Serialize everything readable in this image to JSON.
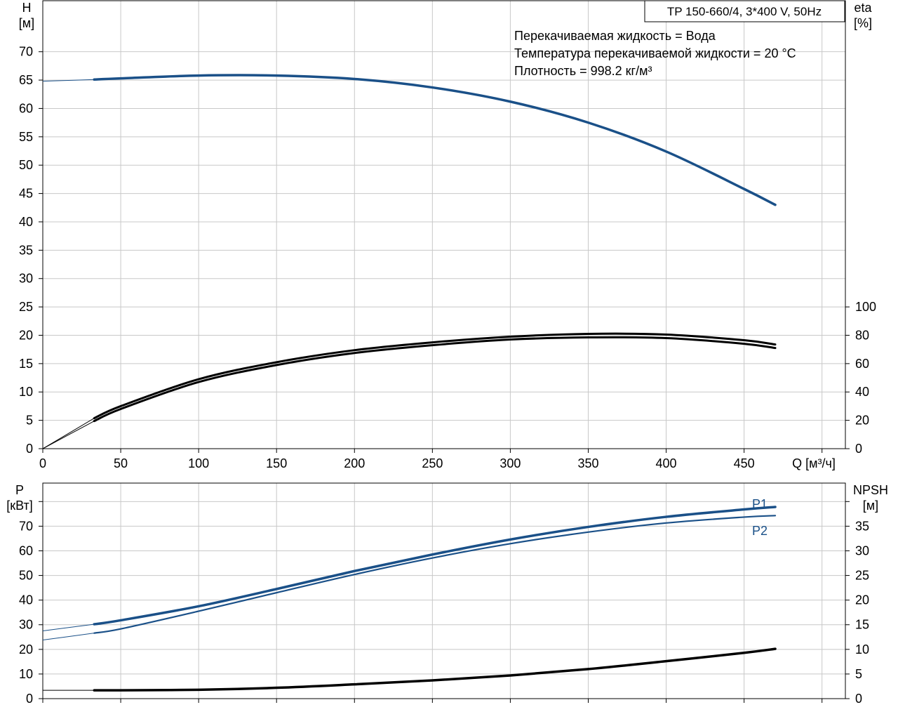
{
  "title": "TP 150-660/4, 3*400 V, 50Hz",
  "info_lines": [
    "Перекачиваемая жидкость = Вода",
    "Температура перекачиваемой жидкости = 20 °C",
    "Плотность = 998.2 кг/м³"
  ],
  "colors": {
    "blue": "#1a5088",
    "black": "#000000",
    "grid": "#c8c8c8"
  },
  "chart_data": [
    {
      "type": "line",
      "name": "head-efficiency",
      "x_axis": {
        "label": "Q [м³/ч]",
        "range": [
          0,
          515
        ],
        "ticks": [
          0,
          50,
          100,
          150,
          200,
          250,
          300,
          350,
          400,
          450
        ]
      },
      "y_left": {
        "label_line1": "H",
        "label_line2": "[м]",
        "range": [
          0,
          79
        ],
        "ticks": [
          0,
          5,
          10,
          15,
          20,
          25,
          30,
          35,
          40,
          45,
          50,
          55,
          60,
          65,
          70
        ]
      },
      "y_right": {
        "label_line1": "eta",
        "label_line2": "[%]",
        "range": [
          0,
          316
        ],
        "ticks": [
          0,
          20,
          40,
          60,
          80,
          100
        ]
      },
      "series": [
        {
          "key": "H",
          "axis": "left",
          "color": "#1a5088",
          "x": [
            0,
            33,
            50,
            100,
            150,
            200,
            250,
            300,
            350,
            400,
            450,
            470
          ],
          "y": [
            64.8,
            65.1,
            65.3,
            65.8,
            65.8,
            65.2,
            63.7,
            61.2,
            57.5,
            52.4,
            45.8,
            43.0
          ]
        },
        {
          "key": "eta1",
          "axis": "right",
          "color": "#000000",
          "x": [
            0,
            33,
            50,
            100,
            150,
            200,
            250,
            300,
            350,
            400,
            450,
            470
          ],
          "y": [
            0,
            21.5,
            30,
            49,
            61,
            69.5,
            75,
            79,
            81,
            80.5,
            76.5,
            73.5
          ]
        },
        {
          "key": "eta2",
          "axis": "right",
          "color": "#000000",
          "x": [
            0,
            33,
            50,
            100,
            150,
            200,
            250,
            300,
            350,
            400,
            450,
            470
          ],
          "y": [
            0,
            19.5,
            28,
            47,
            59,
            67.5,
            73,
            77,
            78.5,
            78,
            74,
            71
          ]
        }
      ]
    },
    {
      "type": "line",
      "name": "power-npsh",
      "x_axis": {
        "range": [
          0,
          515
        ]
      },
      "y_left": {
        "label_line1": "P",
        "label_line2": "[кВт]",
        "range": [
          0,
          87.5
        ],
        "ticks": [
          0,
          10,
          20,
          30,
          40,
          50,
          60,
          70
        ]
      },
      "y_right": {
        "label_line1": "NPSH",
        "label_line2": "[м]",
        "range": [
          0,
          43.75
        ],
        "ticks": [
          0,
          5,
          10,
          15,
          20,
          25,
          30,
          35
        ]
      },
      "series": [
        {
          "key": "P1",
          "name": "P1",
          "axis": "left",
          "color": "#1a5088",
          "x": [
            0,
            33,
            50,
            100,
            150,
            200,
            250,
            300,
            350,
            400,
            450,
            470
          ],
          "y": [
            27.5,
            30.2,
            31.8,
            37.5,
            44.5,
            51.8,
            58.5,
            64.6,
            69.7,
            73.8,
            76.8,
            77.8
          ]
        },
        {
          "key": "P2",
          "name": "P2",
          "axis": "left",
          "color": "#1a5088",
          "x": [
            0,
            33,
            50,
            100,
            150,
            200,
            250,
            300,
            350,
            400,
            450,
            470
          ],
          "y": [
            23.8,
            26.6,
            28.3,
            35.5,
            43.0,
            50.4,
            57.1,
            62.9,
            67.6,
            71.3,
            73.7,
            74.3
          ]
        },
        {
          "key": "NPSH",
          "axis": "right",
          "color": "#000000",
          "x": [
            0,
            33,
            50,
            100,
            150,
            200,
            250,
            300,
            350,
            400,
            450,
            470
          ],
          "y": [
            1.7,
            1.7,
            1.7,
            1.8,
            2.2,
            2.9,
            3.7,
            4.7,
            6.0,
            7.6,
            9.3,
            10.1
          ]
        }
      ]
    }
  ]
}
